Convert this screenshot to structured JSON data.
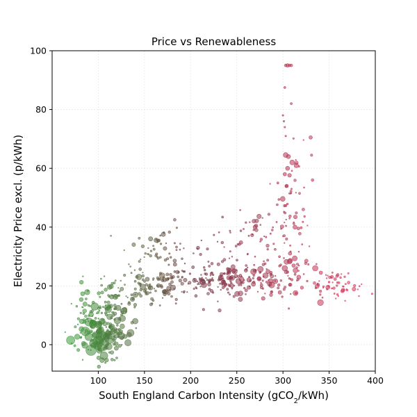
{
  "chart_data": {
    "type": "scatter",
    "title": "Price vs Renewableness",
    "xlabel": "South England Carbon Intensity (gCO",
    "xlabel_sub": "2",
    "xlabel_end": "/kWh)",
    "ylabel": "Electricity Price excl. (p/kWh)",
    "xlim": [
      50,
      400
    ],
    "ylim": [
      -9,
      100
    ],
    "xticks": [
      100,
      150,
      200,
      250,
      300,
      350,
      400
    ],
    "yticks": [
      0,
      20,
      40,
      60,
      80,
      100
    ],
    "grid": true,
    "color_low": "#3a9a3a",
    "color_mid": "#7a3a4a",
    "color_high": "#e0305a",
    "clusters": [
      {
        "x": 105,
        "y": 3,
        "sx": 14,
        "sy": 4,
        "n": 120,
        "rmax": 7
      },
      {
        "x": 115,
        "y": 12,
        "sx": 15,
        "sy": 5,
        "n": 90,
        "rmax": 5
      },
      {
        "x": 155,
        "y": 20,
        "sx": 20,
        "sy": 3,
        "n": 90,
        "rmax": 4
      },
      {
        "x": 165,
        "y": 34,
        "sx": 18,
        "sy": 3,
        "n": 45,
        "rmax": 3
      },
      {
        "x": 230,
        "y": 22,
        "sx": 28,
        "sy": 2.5,
        "n": 130,
        "rmax": 3.5
      },
      {
        "x": 290,
        "y": 23,
        "sx": 25,
        "sy": 4,
        "n": 90,
        "rmax": 4
      },
      {
        "x": 275,
        "y": 38,
        "sx": 25,
        "sy": 5,
        "n": 60,
        "rmax": 3
      },
      {
        "x": 310,
        "y": 50,
        "sx": 8,
        "sy": 12,
        "n": 45,
        "rmax": 3.5
      },
      {
        "x": 360,
        "y": 20,
        "sx": 14,
        "sy": 2.5,
        "n": 55,
        "rmax": 3
      },
      {
        "x": 85,
        "y": 8,
        "sx": 8,
        "sy": 6,
        "n": 30,
        "rmax": 4
      },
      {
        "x": 200,
        "y": 26,
        "sx": 30,
        "sy": 6,
        "n": 40,
        "rmax": 2.5
      }
    ],
    "points": [
      {
        "x": 303,
        "y": 95,
        "s": 2
      },
      {
        "x": 305,
        "y": 95,
        "s": 2.5
      },
      {
        "x": 307,
        "y": 95,
        "s": 2
      },
      {
        "x": 309,
        "y": 95,
        "s": 2
      },
      {
        "x": 302,
        "y": 87.5,
        "s": 1.5
      },
      {
        "x": 309,
        "y": 82,
        "s": 1.5
      },
      {
        "x": 300,
        "y": 78,
        "s": 1.2
      },
      {
        "x": 301,
        "y": 76,
        "s": 1.2
      },
      {
        "x": 302,
        "y": 74,
        "s": 1.2
      },
      {
        "x": 303,
        "y": 71,
        "s": 1.2
      },
      {
        "x": 330,
        "y": 70.5,
        "s": 2.5
      },
      {
        "x": 303,
        "y": 64.5,
        "s": 3.5
      },
      {
        "x": 306,
        "y": 64,
        "s": 3
      },
      {
        "x": 310,
        "y": 62,
        "s": 3.5
      },
      {
        "x": 305,
        "y": 60,
        "s": 3
      },
      {
        "x": 302,
        "y": 58,
        "s": 2.5
      },
      {
        "x": 332,
        "y": 56,
        "s": 2
      },
      {
        "x": 304,
        "y": 54,
        "s": 2.5
      },
      {
        "x": 322,
        "y": 46,
        "s": 2
      },
      {
        "x": 313,
        "y": 40,
        "s": 3
      },
      {
        "x": 100,
        "y": 1,
        "s": 8
      },
      {
        "x": 103,
        "y": 3,
        "s": 7
      },
      {
        "x": 70,
        "y": 1.5,
        "s": 6
      },
      {
        "x": 95,
        "y": 0.5,
        "s": 6
      },
      {
        "x": 112,
        "y": 2,
        "s": 7
      },
      {
        "x": 135,
        "y": 4,
        "s": 5
      },
      {
        "x": 140,
        "y": 8,
        "s": 4
      },
      {
        "x": 335,
        "y": 26,
        "s": 4
      },
      {
        "x": 302,
        "y": 26,
        "s": 4
      },
      {
        "x": 120,
        "y": -4.5,
        "s": 1.5
      }
    ]
  }
}
